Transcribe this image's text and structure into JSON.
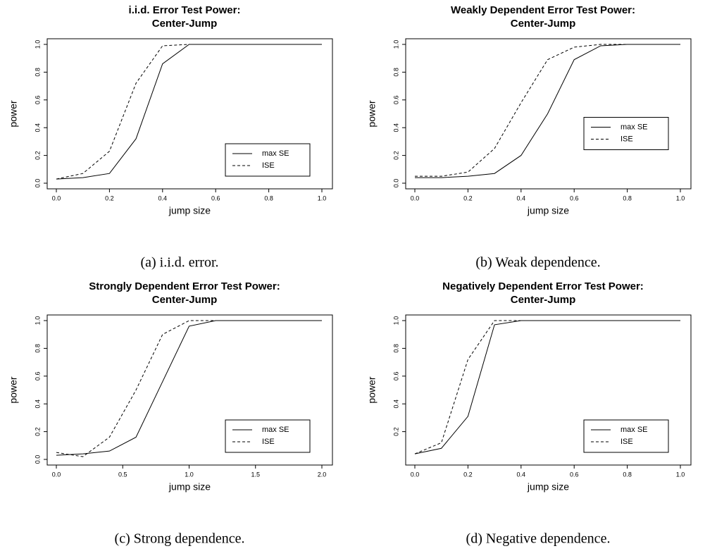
{
  "chart_data": [
    {
      "type": "line",
      "title": [
        "i.i.d. Error Test Power:",
        "Center-Jump"
      ],
      "caption": "(a) i.i.d. error.",
      "xlabel": "jump size",
      "ylabel": "power",
      "x": [
        0,
        0.1,
        0.2,
        0.3,
        0.4,
        0.5,
        0.6,
        0.7,
        0.8,
        0.9,
        1.0
      ],
      "series": [
        {
          "name": "max SE",
          "color": "#000000",
          "dash": "solid",
          "values": [
            0.03,
            0.04,
            0.07,
            0.32,
            0.86,
            1,
            1,
            1,
            1,
            1,
            1
          ]
        },
        {
          "name": "ISE",
          "color": "#000000",
          "dash": "dashed",
          "values": [
            0.03,
            0.07,
            0.23,
            0.72,
            0.99,
            1,
            1,
            1,
            1,
            1,
            1
          ]
        }
      ],
      "xlim": [
        0,
        1
      ],
      "ylim": [
        0,
        1
      ],
      "xticks": [
        {
          "value": 0,
          "label": "0.0"
        },
        0.2,
        0.4,
        0.6,
        0.8,
        {
          "value": 1,
          "label": "1.0"
        }
      ],
      "yticks": [
        {
          "value": 0,
          "label": "0.0"
        },
        0.2,
        0.4,
        0.6,
        0.8,
        {
          "value": 1,
          "label": "1.0"
        }
      ],
      "legend": "bottomright"
    },
    {
      "type": "line",
      "title": [
        "Weakly Dependent Error Test Power:",
        "Center-Jump"
      ],
      "caption": "(b) Weak dependence.",
      "xlabel": "jump size",
      "ylabel": "power",
      "x": [
        0,
        0.1,
        0.2,
        0.3,
        0.4,
        0.5,
        0.6,
        0.7,
        0.8,
        0.9,
        1.0
      ],
      "series": [
        {
          "name": "max SE",
          "color": "#000000",
          "dash": "solid",
          "values": [
            0.04,
            0.04,
            0.05,
            0.07,
            0.2,
            0.5,
            0.89,
            0.99,
            1,
            1,
            1
          ]
        },
        {
          "name": "ISE",
          "color": "#000000",
          "dash": "dashed",
          "values": [
            0.05,
            0.05,
            0.08,
            0.25,
            0.58,
            0.89,
            0.98,
            1,
            1,
            1,
            1
          ]
        }
      ],
      "xlim": [
        0,
        1
      ],
      "ylim": [
        0,
        1
      ],
      "xticks": [
        {
          "value": 0,
          "label": "0.0"
        },
        0.2,
        0.4,
        0.6,
        0.8,
        {
          "value": 1,
          "label": "1.0"
        }
      ],
      "yticks": [
        {
          "value": 0,
          "label": "0.0"
        },
        0.2,
        0.4,
        0.6,
        0.8,
        {
          "value": 1,
          "label": "1.0"
        }
      ],
      "legend": "right"
    },
    {
      "type": "line",
      "title": [
        "Strongly Dependent Error Test Power:",
        "Center-Jump"
      ],
      "caption": "(c) Strong dependence.",
      "xlabel": "jump size",
      "ylabel": "power",
      "x": [
        0,
        0.2,
        0.4,
        0.6,
        0.8,
        1.0,
        1.2,
        1.4,
        1.6,
        1.8,
        2.0
      ],
      "series": [
        {
          "name": "max SE",
          "color": "#000000",
          "dash": "solid",
          "values": [
            0.03,
            0.04,
            0.06,
            0.16,
            0.56,
            0.96,
            1,
            1,
            1,
            1,
            1
          ]
        },
        {
          "name": "ISE",
          "color": "#000000",
          "dash": "dashed",
          "values": [
            0.05,
            0.02,
            0.16,
            0.5,
            0.9,
            1,
            1,
            1,
            1,
            1,
            1
          ]
        }
      ],
      "xlim": [
        0,
        2
      ],
      "ylim": [
        0,
        1
      ],
      "xticks": [
        {
          "value": 0,
          "label": "0.0"
        },
        0.5,
        {
          "value": 1,
          "label": "1.0"
        },
        1.5,
        {
          "value": 2,
          "label": "2.0"
        }
      ],
      "yticks": [
        {
          "value": 0,
          "label": "0.0"
        },
        0.2,
        0.4,
        0.6,
        0.8,
        {
          "value": 1,
          "label": "1.0"
        }
      ],
      "legend": "bottomright"
    },
    {
      "type": "line",
      "title": [
        "Negatively Dependent Error Test Power:",
        "Center-Jump"
      ],
      "caption": "(d) Negative dependence.",
      "xlabel": "jump size",
      "ylabel": "power",
      "x": [
        0,
        0.1,
        0.2,
        0.3,
        0.4,
        0.5,
        0.6,
        0.7,
        0.8,
        0.9,
        1.0
      ],
      "series": [
        {
          "name": "max SE",
          "color": "#000000",
          "dash": "solid",
          "values": [
            0.04,
            0.08,
            0.31,
            0.97,
            1,
            1,
            1,
            1,
            1,
            1,
            1
          ]
        },
        {
          "name": "ISE",
          "color": "#000000",
          "dash": "dashed",
          "values": [
            0.04,
            0.12,
            0.72,
            1,
            1,
            1,
            1,
            1,
            1,
            1,
            1
          ]
        }
      ],
      "xlim": [
        0,
        1
      ],
      "ylim": [
        0,
        1
      ],
      "xticks": [
        {
          "value": 0,
          "label": "0.0"
        },
        0.2,
        0.4,
        0.6,
        0.8,
        {
          "value": 1,
          "label": "1.0"
        }
      ],
      "yticks": [
        0.2,
        0.4,
        0.6,
        0.8,
        {
          "value": 1,
          "label": "1.0"
        }
      ],
      "legend": "bottomright"
    }
  ]
}
